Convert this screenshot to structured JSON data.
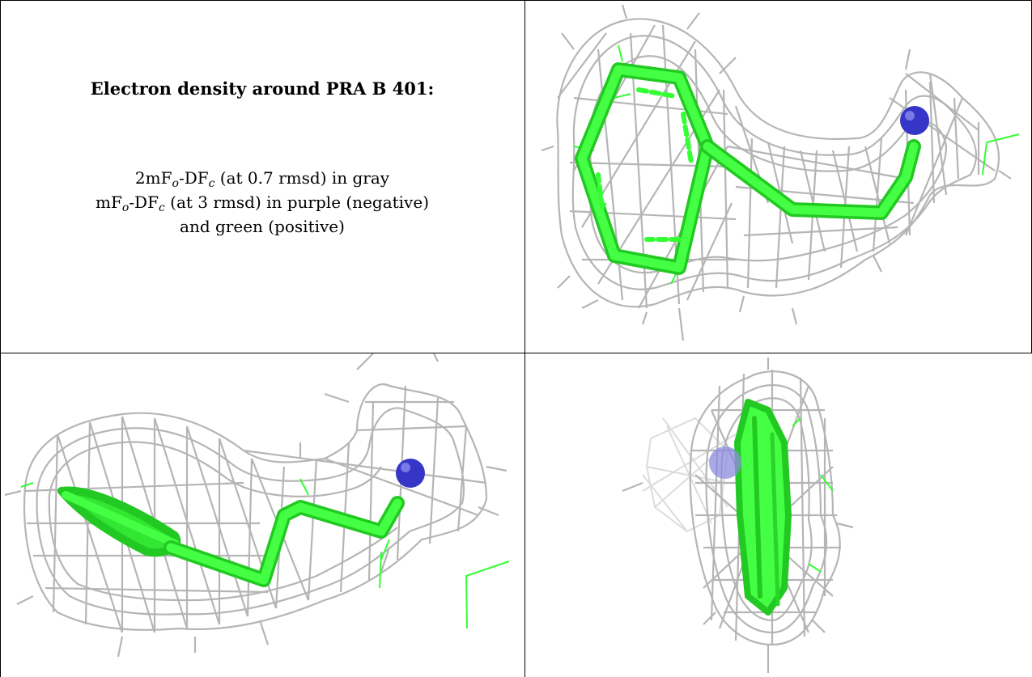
{
  "caption": {
    "title": "Electron density around PRA B 401:",
    "line1_prefix": "2mF",
    "line1_sub1": "o",
    "line1_mid": "-DF",
    "line1_sub2": "c",
    "line1_suffix": " (at 0.7 rmsd) in gray",
    "line2_prefix": "mF",
    "line2_sub1": "o",
    "line2_mid": "-DF",
    "line2_sub2": "c",
    "line2_suffix": " (at 3 rmsd) in purple (negative)",
    "line3": "and green (positive)"
  },
  "colors": {
    "mesh": "#b5b5b5",
    "stick": "#33ff33",
    "stick_dark": "#22c922",
    "atom": "#3535c8",
    "border": "#000000"
  },
  "panels": [
    {
      "view": "top-view"
    },
    {
      "view": "side-view"
    },
    {
      "view": "end-on-view"
    }
  ]
}
